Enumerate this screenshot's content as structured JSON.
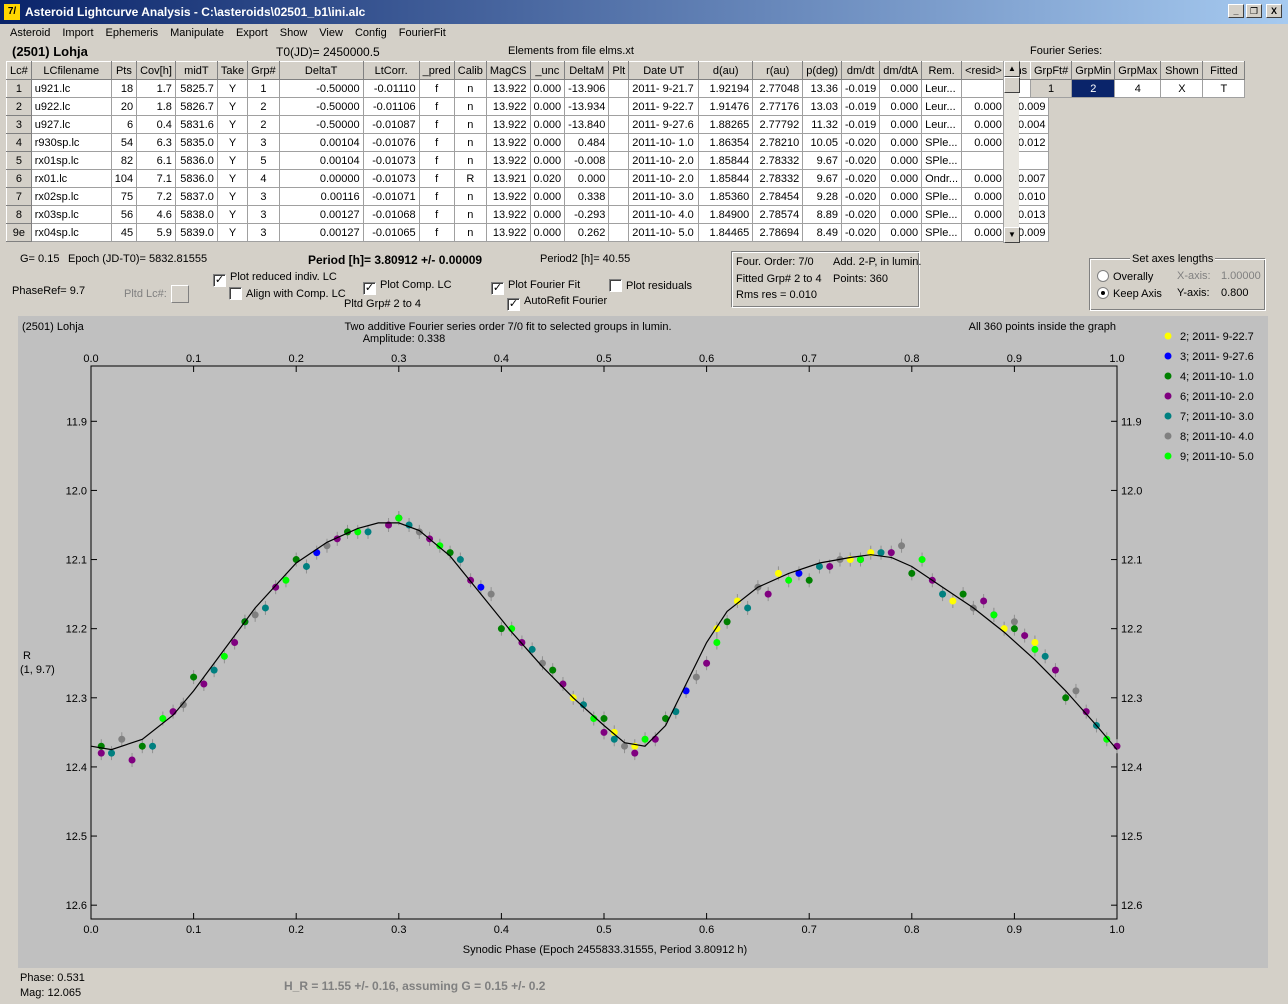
{
  "window": {
    "title": "Asteroid Lightcurve Analysis - C:\\asteroids\\02501_b1\\ini.alc",
    "icon_text": "7/",
    "minimize": "_",
    "restore": "❐",
    "close": "X"
  },
  "menu": [
    "Asteroid",
    "Import",
    "Ephemeris",
    "Manipulate",
    "Export",
    "Show",
    "View",
    "Config",
    "FourierFit"
  ],
  "header": {
    "asteroid": "(2501) Lohja",
    "t0": "T0(JD)= 2450000.5",
    "elements": "Elements from file elms.xt",
    "fourier_label": "Fourier Series:"
  },
  "lc_table": {
    "columns": [
      "Lc#",
      "LCfilename",
      "Pts",
      "Cov[h]",
      "midT",
      "Take",
      "Grp#",
      "DeltaT",
      "LtCorr.",
      "_pred",
      "Calib",
      "MagCS",
      "_unc",
      "DeltaM",
      "Plt",
      "Date UT",
      "d(au)",
      "r(au)",
      "p(deg)",
      "dm/dt",
      "dm/dtA",
      "Rem.",
      "<resid>",
      "rms res"
    ],
    "rows": [
      [
        "1",
        "u921.lc",
        "18",
        "1.7",
        "5825.7",
        "Y",
        "1",
        "-0.50000",
        "-0.01110",
        "f",
        "n",
        "13.922",
        "0.000",
        "-13.906",
        "",
        "2011- 9-21.7",
        "1.92194",
        "2.77048",
        "13.36",
        "-0.019",
        "0.000",
        "Leur...",
        "",
        ""
      ],
      [
        "2",
        "u922.lc",
        "20",
        "1.8",
        "5826.7",
        "Y",
        "2",
        "-0.50000",
        "-0.01106",
        "f",
        "n",
        "13.922",
        "0.000",
        "-13.934",
        "",
        "2011- 9-22.7",
        "1.91476",
        "2.77176",
        "13.03",
        "-0.019",
        "0.000",
        "Leur...",
        "0.000",
        "0.009"
      ],
      [
        "3",
        "u927.lc",
        "6",
        "0.4",
        "5831.6",
        "Y",
        "2",
        "-0.50000",
        "-0.01087",
        "f",
        "n",
        "13.922",
        "0.000",
        "-13.840",
        "",
        "2011- 9-27.6",
        "1.88265",
        "2.77792",
        "11.32",
        "-0.019",
        "0.000",
        "Leur...",
        "0.000",
        "0.004"
      ],
      [
        "4",
        "r930sp.lc",
        "54",
        "6.3",
        "5835.0",
        "Y",
        "3",
        "0.00104",
        "-0.01076",
        "f",
        "n",
        "13.922",
        "0.000",
        "0.484",
        "",
        "2011-10- 1.0",
        "1.86354",
        "2.78210",
        "10.05",
        "-0.020",
        "0.000",
        "SPle...",
        "0.000",
        "0.012"
      ],
      [
        "5",
        "rx01sp.lc",
        "82",
        "6.1",
        "5836.0",
        "Y",
        "5",
        "0.00104",
        "-0.01073",
        "f",
        "n",
        "13.922",
        "0.000",
        "-0.008",
        "",
        "2011-10- 2.0",
        "1.85844",
        "2.78332",
        "9.67",
        "-0.020",
        "0.000",
        "SPle...",
        "",
        ""
      ],
      [
        "6",
        "rx01.lc",
        "104",
        "7.1",
        "5836.0",
        "Y",
        "4",
        "0.00000",
        "-0.01073",
        "f",
        "R",
        "13.921",
        "0.020",
        "0.000",
        "",
        "2011-10- 2.0",
        "1.85844",
        "2.78332",
        "9.67",
        "-0.020",
        "0.000",
        "Ondr...",
        "0.000",
        "0.007"
      ],
      [
        "7",
        "rx02sp.lc",
        "75",
        "7.2",
        "5837.0",
        "Y",
        "3",
        "0.00116",
        "-0.01071",
        "f",
        "n",
        "13.922",
        "0.000",
        "0.338",
        "",
        "2011-10- 3.0",
        "1.85360",
        "2.78454",
        "9.28",
        "-0.020",
        "0.000",
        "SPle...",
        "0.000",
        "0.010"
      ],
      [
        "8",
        "rx03sp.lc",
        "56",
        "4.6",
        "5838.0",
        "Y",
        "3",
        "0.00127",
        "-0.01068",
        "f",
        "n",
        "13.922",
        "0.000",
        "-0.293",
        "",
        "2011-10- 4.0",
        "1.84900",
        "2.78574",
        "8.89",
        "-0.020",
        "0.000",
        "SPle...",
        "0.000",
        "0.013"
      ],
      [
        "9e",
        "rx04sp.lc",
        "45",
        "5.9",
        "5839.0",
        "Y",
        "3",
        "0.00127",
        "-0.01065",
        "f",
        "n",
        "13.922",
        "0.000",
        "0.262",
        "",
        "2011-10- 5.0",
        "1.84465",
        "2.78694",
        "8.49",
        "-0.020",
        "0.000",
        "SPle...",
        "0.000",
        "0.009"
      ]
    ]
  },
  "fourier_table": {
    "columns": [
      "GrpFt#",
      "GrpMin",
      "GrpMax",
      "Shown",
      "Fitted"
    ],
    "row": [
      "1",
      "2",
      "4",
      "X",
      "T"
    ]
  },
  "info": {
    "g": "G= 0.15",
    "epoch": "Epoch (JD-T0)= 5832.81555",
    "period": "Period [h]= 3.80912 +/- 0.00009",
    "period2": "Period2 [h]= 40.55",
    "phaseref": "PhaseRef= 9.7",
    "pltd_lc": "Pltd Lc#:",
    "pltd_grp": "Pltd Grp#  2   to   4"
  },
  "checkboxes": {
    "plot_reduced": {
      "label": "Plot reduced indiv. LC",
      "mark": "✓"
    },
    "align_comp": {
      "label": "Align with Comp. LC",
      "mark": ""
    },
    "plot_comp": {
      "label": "Plot Comp. LC",
      "mark": "✓"
    },
    "plot_fourier": {
      "label": "Plot Fourier Fit",
      "mark": "✓"
    },
    "plot_residuals": {
      "label": "Plot residuals",
      "mark": ""
    },
    "autorefit": {
      "label": "AutoRefit Fourier",
      "mark": "✓"
    }
  },
  "fit_info": {
    "order": "Four. Order:  7/0",
    "add": "Add. 2-P, in lumin.",
    "fitted": "Fitted Grp# 2 to 4",
    "points": "Points: 360",
    "rms": "Rms res     = 0.010"
  },
  "axes_box": {
    "title": "Set axes lengths",
    "overally": "Overally",
    "keep": "Keep Axis",
    "xaxis_label": "X-axis:",
    "xaxis_val": "1.00000",
    "yaxis_label": "Y-axis:",
    "yaxis_val": "0.800"
  },
  "plot": {
    "corner": "(2501) Lohja",
    "title1": "Two additive Fourier series order 7/0 fit to selected groups in lumin.",
    "title2": "Amplitude: 0.338",
    "inside": "All 360 points inside the graph",
    "ylabel1": "R",
    "ylabel2": "(1, 9.7)"
  },
  "chart_data": {
    "type": "scatter",
    "title": "Two additive Fourier series order 7/0 fit to selected groups in lumin.",
    "subtitle": "Amplitude: 0.338",
    "xlabel": "Synodic Phase (Epoch 2455833.31555, Period 3.80912 h)",
    "ylabel": "R",
    "xlim": [
      0.0,
      1.0
    ],
    "ylim": [
      12.62,
      11.82
    ],
    "y_inverted": true,
    "x_ticks": [
      "0.0",
      "0.1",
      "0.2",
      "0.3",
      "0.4",
      "0.5",
      "0.6",
      "0.7",
      "0.8",
      "0.9",
      "1.0"
    ],
    "y_ticks": [
      "11.9",
      "12.0",
      "12.1",
      "12.2",
      "12.3",
      "12.4",
      "12.5",
      "12.6"
    ],
    "legend_position": "right",
    "fit_curve": {
      "x": [
        0.0,
        0.02,
        0.05,
        0.08,
        0.1,
        0.13,
        0.16,
        0.2,
        0.23,
        0.26,
        0.28,
        0.3,
        0.32,
        0.35,
        0.38,
        0.41,
        0.44,
        0.47,
        0.5,
        0.52,
        0.54,
        0.56,
        0.58,
        0.6,
        0.62,
        0.65,
        0.68,
        0.71,
        0.74,
        0.76,
        0.78,
        0.8,
        0.83,
        0.86,
        0.89,
        0.92,
        0.95,
        0.98,
        1.0
      ],
      "y": [
        12.37,
        12.375,
        12.36,
        12.325,
        12.29,
        12.23,
        12.17,
        12.105,
        12.075,
        12.055,
        12.047,
        12.047,
        12.058,
        12.095,
        12.15,
        12.205,
        12.255,
        12.3,
        12.34,
        12.365,
        12.37,
        12.34,
        12.28,
        12.22,
        12.175,
        12.14,
        12.12,
        12.105,
        12.097,
        12.093,
        12.097,
        12.11,
        12.14,
        12.17,
        12.205,
        12.245,
        12.29,
        12.34,
        12.375
      ]
    },
    "series": [
      {
        "name": "2; 2011- 9-22.7",
        "color": "#ffff00",
        "x": [
          0.47,
          0.51,
          0.53,
          0.61,
          0.63,
          0.67,
          0.74,
          0.76,
          0.84,
          0.89,
          0.92
        ],
        "y": [
          12.3,
          12.35,
          12.37,
          12.2,
          12.16,
          12.12,
          12.1,
          12.09,
          12.16,
          12.2,
          12.22
        ]
      },
      {
        "name": "3; 2011- 9-27.6",
        "color": "#0000ff",
        "x": [
          0.15,
          0.22,
          0.38,
          0.58,
          0.69
        ],
        "y": [
          12.19,
          12.09,
          12.14,
          12.29,
          12.12
        ]
      },
      {
        "name": "4; 2011-10- 1.0",
        "color": "#008000",
        "x": [
          0.01,
          0.05,
          0.1,
          0.15,
          0.2,
          0.25,
          0.3,
          0.35,
          0.4,
          0.45,
          0.5,
          0.56,
          0.62,
          0.7,
          0.75,
          0.8,
          0.85,
          0.9,
          0.95
        ],
        "y": [
          12.37,
          12.37,
          12.27,
          12.19,
          12.1,
          12.06,
          12.04,
          12.09,
          12.2,
          12.26,
          12.33,
          12.33,
          12.19,
          12.13,
          12.1,
          12.12,
          12.15,
          12.2,
          12.3
        ]
      },
      {
        "name": "6; 2011-10- 2.0",
        "color": "#800080",
        "x": [
          0.01,
          0.04,
          0.08,
          0.11,
          0.14,
          0.18,
          0.24,
          0.29,
          0.33,
          0.37,
          0.42,
          0.46,
          0.5,
          0.53,
          0.55,
          0.6,
          0.66,
          0.72,
          0.78,
          0.82,
          0.87,
          0.91,
          0.94,
          0.97,
          1.0
        ],
        "y": [
          12.38,
          12.39,
          12.32,
          12.28,
          12.22,
          12.14,
          12.07,
          12.05,
          12.07,
          12.13,
          12.22,
          12.28,
          12.35,
          12.38,
          12.36,
          12.25,
          12.15,
          12.11,
          12.09,
          12.13,
          12.16,
          12.21,
          12.26,
          12.32,
          12.37
        ]
      },
      {
        "name": "7; 2011-10- 3.0",
        "color": "#008080",
        "x": [
          0.02,
          0.06,
          0.12,
          0.17,
          0.21,
          0.27,
          0.31,
          0.36,
          0.43,
          0.48,
          0.51,
          0.57,
          0.64,
          0.71,
          0.77,
          0.83,
          0.88,
          0.93,
          0.98
        ],
        "y": [
          12.38,
          12.37,
          12.26,
          12.17,
          12.11,
          12.06,
          12.05,
          12.1,
          12.23,
          12.31,
          12.36,
          12.32,
          12.17,
          12.11,
          12.09,
          12.15,
          12.18,
          12.24,
          12.34
        ]
      },
      {
        "name": "8; 2011-10- 4.0",
        "color": "#808080",
        "x": [
          0.03,
          0.09,
          0.16,
          0.23,
          0.32,
          0.39,
          0.44,
          0.52,
          0.59,
          0.65,
          0.73,
          0.79,
          0.86,
          0.9,
          0.96
        ],
        "y": [
          12.36,
          12.31,
          12.18,
          12.08,
          12.06,
          12.15,
          12.25,
          12.37,
          12.27,
          12.14,
          12.1,
          12.08,
          12.17,
          12.19,
          12.29
        ]
      },
      {
        "name": "9; 2011-10- 5.0",
        "color": "#00ff00",
        "x": [
          0.07,
          0.13,
          0.19,
          0.26,
          0.3,
          0.34,
          0.41,
          0.49,
          0.54,
          0.61,
          0.68,
          0.75,
          0.81,
          0.88,
          0.92,
          0.99
        ],
        "y": [
          12.33,
          12.24,
          12.13,
          12.06,
          12.04,
          12.08,
          12.2,
          12.33,
          12.36,
          12.22,
          12.13,
          12.1,
          12.1,
          12.18,
          12.23,
          12.36
        ]
      }
    ]
  },
  "status": {
    "phase": "Phase:  0.531",
    "mag": "Mag:    12.065",
    "h_r": "H_R = 11.55 +/- 0.16, assuming G = 0.15 +/- 0.2"
  }
}
